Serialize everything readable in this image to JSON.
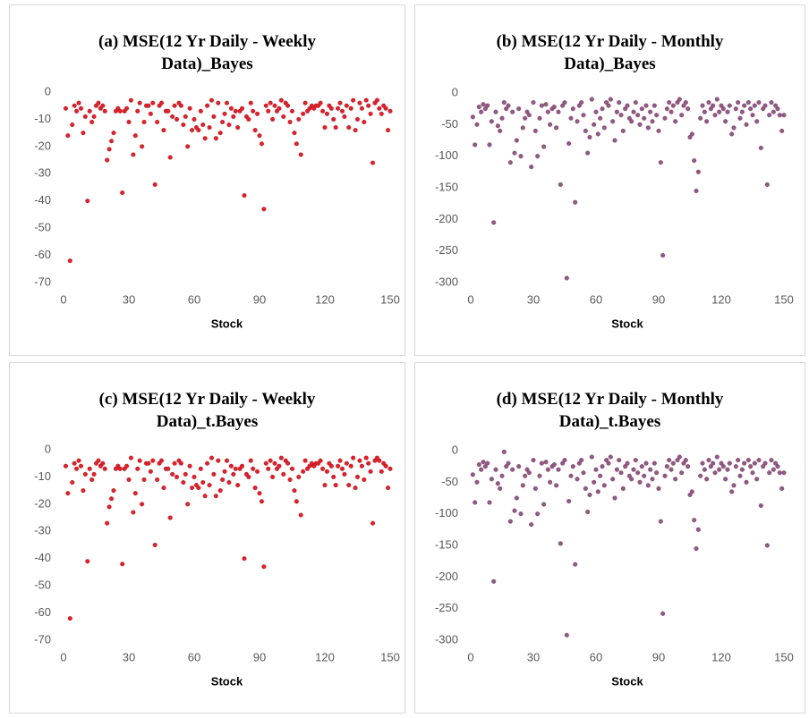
{
  "chart_data": [
    {
      "type": "scatter",
      "title": "(a) MSE(12 Yr Daily - Weekly Data)_Bayes",
      "x_label": "Stock",
      "color": "#e0202a",
      "xlim": [
        0,
        150
      ],
      "xticks": [
        0,
        30,
        60,
        90,
        120,
        150
      ],
      "ylim": [
        -70,
        0
      ],
      "yticks": [
        -70,
        -60,
        -50,
        -40,
        -30,
        -20,
        -10,
        0
      ],
      "x": [
        1,
        2,
        3,
        4,
        5,
        6,
        7,
        8,
        9,
        10,
        11,
        12,
        13,
        14,
        15,
        16,
        17,
        18,
        19,
        20,
        21,
        22,
        23,
        24,
        25,
        26,
        27,
        28,
        29,
        30,
        31,
        32,
        33,
        34,
        35,
        36,
        37,
        38,
        39,
        40,
        41,
        42,
        43,
        44,
        45,
        46,
        47,
        48,
        49,
        50,
        51,
        52,
        53,
        54,
        55,
        56,
        57,
        58,
        59,
        60,
        61,
        62,
        63,
        64,
        65,
        66,
        67,
        68,
        69,
        70,
        71,
        72,
        73,
        74,
        75,
        76,
        77,
        78,
        79,
        80,
        81,
        82,
        83,
        84,
        85,
        86,
        87,
        88,
        89,
        90,
        91,
        92,
        93,
        94,
        95,
        96,
        97,
        98,
        99,
        100,
        101,
        102,
        103,
        104,
        105,
        106,
        107,
        108,
        109,
        110,
        111,
        112,
        113,
        114,
        115,
        116,
        117,
        118,
        119,
        120,
        121,
        122,
        123,
        124,
        125,
        126,
        127,
        128,
        129,
        130,
        131,
        132,
        133,
        134,
        135,
        136,
        137,
        138,
        139,
        140,
        141,
        142,
        143,
        144,
        145,
        146,
        147,
        148,
        149,
        150
      ],
      "values": [
        -6,
        -16,
        -62,
        -12,
        -5,
        -7,
        -4,
        -6,
        -15,
        -9,
        -40,
        -7,
        -11,
        -9,
        -5,
        -4,
        -6,
        -5,
        -7,
        -25,
        -21,
        -18,
        -15,
        -7,
        -6,
        -7,
        -37,
        -7,
        -6,
        -11,
        -3,
        -23,
        -16,
        -7,
        -4,
        -20,
        -11,
        -5,
        -5,
        -8,
        -4,
        -34,
        -11,
        -5,
        -4,
        -14,
        -7,
        -7,
        -24,
        -9,
        -5,
        -10,
        -4,
        -5,
        -12,
        -9,
        -20,
        -6,
        -14,
        -10,
        -13,
        -14,
        -7,
        -12,
        -17,
        -5,
        -13,
        -3,
        -9,
        -17,
        -4,
        -15,
        -11,
        -8,
        -4,
        -12,
        -6,
        -9,
        -7,
        -13,
        -7,
        -6,
        -38,
        -9,
        -10,
        -4,
        -7,
        -14,
        -8,
        -16,
        -19,
        -43,
        -5,
        -7,
        -4,
        -10,
        -5,
        -7,
        -6,
        -3,
        -9,
        -4,
        -5,
        -11,
        -7,
        -15,
        -19,
        -10,
        -23,
        -8,
        -4,
        -7,
        -6,
        -5,
        -6,
        -5,
        -5,
        -4,
        -7,
        -13,
        -8,
        -5,
        -6,
        -10,
        -13,
        -6,
        -4,
        -7,
        -9,
        -5,
        -13,
        -6,
        -3,
        -14,
        -10,
        -4,
        -6,
        -11,
        -3,
        -5,
        -8,
        -26,
        -4,
        -3,
        -6,
        -8,
        -5,
        -6,
        -14,
        -7
      ]
    },
    {
      "type": "scatter",
      "title": "(b) MSE(12 Yr Daily - Monthly Data)_Bayes",
      "x_label": "Stock",
      "color": "#8e5a8a",
      "xlim": [
        0,
        150
      ],
      "xticks": [
        0,
        30,
        60,
        90,
        120,
        150
      ],
      "ylim": [
        -300,
        0
      ],
      "yticks": [
        -300,
        -250,
        -200,
        -150,
        -100,
        -50,
        0
      ],
      "x": [
        1,
        2,
        3,
        4,
        5,
        6,
        7,
        8,
        9,
        10,
        11,
        12,
        13,
        14,
        15,
        16,
        17,
        18,
        19,
        20,
        21,
        22,
        23,
        24,
        25,
        26,
        27,
        28,
        29,
        30,
        31,
        32,
        33,
        34,
        35,
        36,
        37,
        38,
        39,
        40,
        41,
        42,
        43,
        44,
        45,
        46,
        47,
        48,
        49,
        50,
        51,
        52,
        53,
        54,
        55,
        56,
        57,
        58,
        59,
        60,
        61,
        62,
        63,
        64,
        65,
        66,
        67,
        68,
        69,
        70,
        71,
        72,
        73,
        74,
        75,
        76,
        77,
        78,
        79,
        80,
        81,
        82,
        83,
        84,
        85,
        86,
        87,
        88,
        89,
        90,
        91,
        92,
        93,
        94,
        95,
        96,
        97,
        98,
        99,
        100,
        101,
        102,
        103,
        104,
        105,
        106,
        107,
        108,
        109,
        110,
        111,
        112,
        113,
        114,
        115,
        116,
        117,
        118,
        119,
        120,
        121,
        122,
        123,
        124,
        125,
        126,
        127,
        128,
        129,
        130,
        131,
        132,
        133,
        134,
        135,
        136,
        137,
        138,
        139,
        140,
        141,
        142,
        143,
        144,
        145,
        146,
        147,
        148,
        149,
        150
      ],
      "values": [
        -38,
        -82,
        -50,
        -22,
        -30,
        -18,
        -25,
        -20,
        -82,
        -45,
        -205,
        -30,
        -52,
        -60,
        -40,
        -15,
        -25,
        -20,
        -110,
        -30,
        -95,
        -75,
        -25,
        -100,
        -55,
        -40,
        -30,
        -35,
        -117,
        -15,
        -60,
        -100,
        -40,
        -20,
        -85,
        -18,
        -30,
        -50,
        -25,
        -22,
        -55,
        -30,
        -145,
        -20,
        -15,
        -293,
        -80,
        -40,
        -25,
        -173,
        -45,
        -20,
        -15,
        -35,
        -60,
        -95,
        -70,
        -10,
        -50,
        -30,
        -65,
        -40,
        -25,
        -55,
        -15,
        -20,
        -10,
        -45,
        -75,
        -30,
        -15,
        -35,
        -60,
        -25,
        -20,
        -40,
        -45,
        -30,
        -15,
        -35,
        -50,
        -25,
        -40,
        -20,
        -55,
        -30,
        -45,
        -20,
        -35,
        -60,
        -110,
        -257,
        -40,
        -25,
        -15,
        -30,
        -20,
        -45,
        -15,
        -10,
        -35,
        -20,
        -15,
        -25,
        -70,
        -65,
        -107,
        -155,
        -125,
        -40,
        -20,
        -30,
        -45,
        -15,
        -25,
        -20,
        -35,
        -10,
        -30,
        -20,
        -25,
        -45,
        -30,
        -20,
        -65,
        -55,
        -25,
        -15,
        -40,
        -30,
        -20,
        -50,
        -15,
        -25,
        -35,
        -20,
        -45,
        -15,
        -87,
        -25,
        -20,
        -145,
        -35,
        -15,
        -30,
        -20,
        -25,
        -35,
        -60,
        -35
      ]
    },
    {
      "type": "scatter",
      "title": "(c) MSE(12 Yr Daily - Weekly Data)_t.Bayes",
      "x_label": "Stock",
      "color": "#e0202a",
      "xlim": [
        0,
        150
      ],
      "xticks": [
        0,
        30,
        60,
        90,
        120,
        150
      ],
      "ylim": [
        -70,
        0
      ],
      "yticks": [
        -70,
        -60,
        -50,
        -40,
        -30,
        -20,
        -10,
        0
      ],
      "x": [
        1,
        2,
        3,
        4,
        5,
        6,
        7,
        8,
        9,
        10,
        11,
        12,
        13,
        14,
        15,
        16,
        17,
        18,
        19,
        20,
        21,
        22,
        23,
        24,
        25,
        26,
        27,
        28,
        29,
        30,
        31,
        32,
        33,
        34,
        35,
        36,
        37,
        38,
        39,
        40,
        41,
        42,
        43,
        44,
        45,
        46,
        47,
        48,
        49,
        50,
        51,
        52,
        53,
        54,
        55,
        56,
        57,
        58,
        59,
        60,
        61,
        62,
        63,
        64,
        65,
        66,
        67,
        68,
        69,
        70,
        71,
        72,
        73,
        74,
        75,
        76,
        77,
        78,
        79,
        80,
        81,
        82,
        83,
        84,
        85,
        86,
        87,
        88,
        89,
        90,
        91,
        92,
        93,
        94,
        95,
        96,
        97,
        98,
        99,
        100,
        101,
        102,
        103,
        104,
        105,
        106,
        107,
        108,
        109,
        110,
        111,
        112,
        113,
        114,
        115,
        116,
        117,
        118,
        119,
        120,
        121,
        122,
        123,
        124,
        125,
        126,
        127,
        128,
        129,
        130,
        131,
        132,
        133,
        134,
        135,
        136,
        137,
        138,
        139,
        140,
        141,
        142,
        143,
        144,
        145,
        146,
        147,
        148,
        149,
        150
      ],
      "values": [
        -6,
        -16,
        -62,
        -12,
        -5,
        -7,
        -4,
        -6,
        -15,
        -9,
        -41,
        -7,
        -11,
        -9,
        -5,
        -4,
        -6,
        -5,
        -7,
        -27,
        -21,
        -18,
        -15,
        -7,
        -6,
        -7,
        -42,
        -7,
        -6,
        -11,
        -3,
        -23,
        -16,
        -7,
        -4,
        -20,
        -11,
        -5,
        -5,
        -8,
        -4,
        -35,
        -11,
        -5,
        -4,
        -14,
        -7,
        -7,
        -25,
        -9,
        -5,
        -10,
        -4,
        -5,
        -12,
        -9,
        -20,
        -6,
        -14,
        -10,
        -13,
        -14,
        -7,
        -12,
        -17,
        -5,
        -13,
        -3,
        -9,
        -17,
        -4,
        -15,
        -11,
        -8,
        -4,
        -12,
        -6,
        -9,
        -7,
        -13,
        -7,
        -6,
        -40,
        -9,
        -10,
        -4,
        -7,
        -14,
        -8,
        -16,
        -19,
        -43,
        -5,
        -7,
        -4,
        -10,
        -5,
        -7,
        -6,
        -3,
        -9,
        -4,
        -5,
        -11,
        -7,
        -15,
        -19,
        -10,
        -24,
        -8,
        -4,
        -7,
        -6,
        -5,
        -6,
        -5,
        -5,
        -4,
        -7,
        -13,
        -8,
        -5,
        -6,
        -10,
        -13,
        -6,
        -4,
        -7,
        -9,
        -5,
        -13,
        -6,
        -3,
        -14,
        -10,
        -4,
        -6,
        -11,
        -3,
        -5,
        -8,
        -27,
        -4,
        -3,
        -4,
        -8,
        -5,
        -6,
        -14,
        -7
      ]
    },
    {
      "type": "scatter",
      "title": "(d) MSE(12 Yr Daily - Monthly Data)_t.Bayes",
      "x_label": "Stock",
      "color": "#8e5a8a",
      "xlim": [
        0,
        150
      ],
      "xticks": [
        0,
        30,
        60,
        90,
        120,
        150
      ],
      "ylim": [
        -300,
        0
      ],
      "yticks": [
        -300,
        -250,
        -200,
        -150,
        -100,
        -50,
        0
      ],
      "x": [
        1,
        2,
        3,
        4,
        5,
        6,
        7,
        8,
        9,
        10,
        11,
        12,
        13,
        14,
        15,
        16,
        17,
        18,
        19,
        20,
        21,
        22,
        23,
        24,
        25,
        26,
        27,
        28,
        29,
        30,
        31,
        32,
        33,
        34,
        35,
        36,
        37,
        38,
        39,
        40,
        41,
        42,
        43,
        44,
        45,
        46,
        47,
        48,
        49,
        50,
        51,
        52,
        53,
        54,
        55,
        56,
        57,
        58,
        59,
        60,
        61,
        62,
        63,
        64,
        65,
        66,
        67,
        68,
        69,
        70,
        71,
        72,
        73,
        74,
        75,
        76,
        77,
        78,
        79,
        80,
        81,
        82,
        83,
        84,
        85,
        86,
        87,
        88,
        89,
        90,
        91,
        92,
        93,
        94,
        95,
        96,
        97,
        98,
        99,
        100,
        101,
        102,
        103,
        104,
        105,
        106,
        107,
        108,
        109,
        110,
        111,
        112,
        113,
        114,
        115,
        116,
        117,
        118,
        119,
        120,
        121,
        122,
        123,
        124,
        125,
        126,
        127,
        128,
        129,
        130,
        131,
        132,
        133,
        134,
        135,
        136,
        137,
        138,
        139,
        140,
        141,
        142,
        143,
        144,
        145,
        146,
        147,
        148,
        149,
        150
      ],
      "values": [
        -38,
        -82,
        -50,
        -22,
        -30,
        -18,
        -25,
        -20,
        -82,
        -45,
        -207,
        -30,
        -52,
        -60,
        -40,
        -2,
        -25,
        -20,
        -112,
        -30,
        -95,
        -75,
        -25,
        -100,
        -55,
        -40,
        -30,
        -35,
        -117,
        -15,
        -60,
        -100,
        -40,
        -20,
        -85,
        -18,
        -30,
        -50,
        -25,
        -22,
        -55,
        -30,
        -147,
        -20,
        -15,
        -292,
        -80,
        -40,
        -25,
        -180,
        -45,
        -20,
        -15,
        -35,
        -60,
        -97,
        -70,
        -10,
        -50,
        -30,
        -65,
        -40,
        -25,
        -55,
        -15,
        -20,
        -10,
        -45,
        -75,
        -30,
        -15,
        -35,
        -60,
        -25,
        -20,
        -40,
        -45,
        -30,
        -15,
        -35,
        -50,
        -25,
        -40,
        -20,
        -55,
        -30,
        -45,
        -20,
        -35,
        -60,
        -112,
        -258,
        -40,
        -25,
        -15,
        -30,
        -20,
        -45,
        -15,
        -10,
        -35,
        -20,
        -15,
        -25,
        -70,
        -65,
        -110,
        -155,
        -125,
        -40,
        -20,
        -30,
        -45,
        -15,
        -25,
        -20,
        -35,
        -10,
        -30,
        -20,
        -25,
        -45,
        -30,
        -20,
        -65,
        -55,
        -25,
        -15,
        -40,
        -30,
        -20,
        -50,
        -15,
        -25,
        -35,
        -20,
        -45,
        -15,
        -87,
        -25,
        -20,
        -150,
        -35,
        -15,
        -30,
        -20,
        -25,
        -35,
        -60,
        -35
      ]
    }
  ]
}
